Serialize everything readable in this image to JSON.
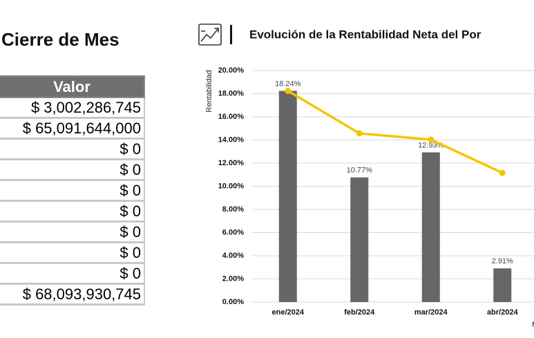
{
  "heading": "Cierre de Mes",
  "table": {
    "header": "Valor",
    "rows": [
      "$ 3,002,286,745",
      "$ 65,091,644,000",
      "$ 0",
      "$ 0",
      "$ 0",
      "$ 0",
      "$ 0",
      "$ 0",
      "$ 0",
      "$ 68,093,930,745"
    ]
  },
  "chart_data": {
    "type": "bar",
    "title": "Evolución de la Rentabilidad Neta del Por",
    "ylabel": "Rentabilidad",
    "xlabel": "M",
    "categories": [
      "ene/2024",
      "feb/2024",
      "mar/2024",
      "abr/2024"
    ],
    "values": [
      18.24,
      10.77,
      12.93,
      2.91
    ],
    "value_labels": [
      "18.24%",
      "10.77%",
      "12.93%",
      "2.91%"
    ],
    "color": "#666666",
    "line": {
      "type": "line",
      "color": "#f5c400",
      "values": [
        18.24,
        14.57,
        14.03,
        11.16
      ]
    },
    "ylim": [
      0,
      20
    ],
    "yticks": [
      {
        "value": 0,
        "label": "0.00%"
      },
      {
        "value": 2,
        "label": "2.00%"
      },
      {
        "value": 4,
        "label": "4.00%"
      },
      {
        "value": 6,
        "label": "6.00%"
      },
      {
        "value": 8,
        "label": "8.00%"
      },
      {
        "value": 10,
        "label": "10.00%"
      },
      {
        "value": 12,
        "label": "12.00%"
      },
      {
        "value": 14,
        "label": "14.00%"
      },
      {
        "value": 16,
        "label": "16.00%"
      },
      {
        "value": 18,
        "label": "18.00%"
      },
      {
        "value": 20,
        "label": "20.00%"
      }
    ],
    "grid": true
  }
}
